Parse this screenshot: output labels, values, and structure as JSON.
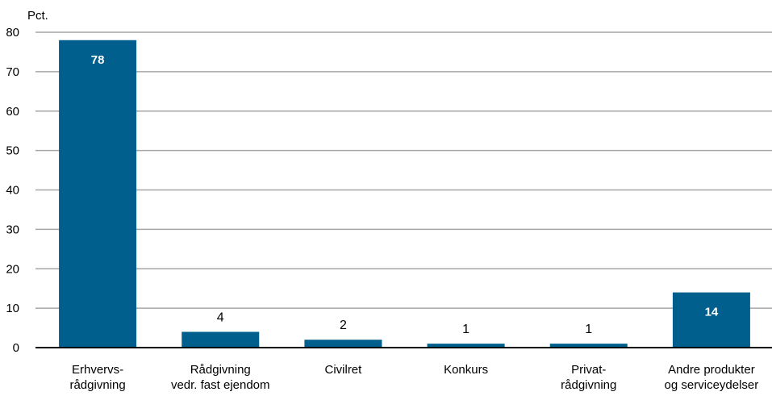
{
  "chart_data": {
    "type": "bar",
    "ylabel": "Pct.",
    "ylim": [
      0,
      80
    ],
    "yticks": [
      0,
      10,
      20,
      30,
      40,
      50,
      60,
      70,
      80
    ],
    "grid": true,
    "bar_color": "#005f8c",
    "categories": [
      [
        "Erhvervs-",
        "rådgivning"
      ],
      [
        "Rådgivning",
        "vedr. fast ejendom"
      ],
      [
        "Civilret"
      ],
      [
        "Konkurs"
      ],
      [
        "Privat-",
        "rådgivning"
      ],
      [
        "Andre produkter",
        "og serviceydelser"
      ]
    ],
    "values": [
      78,
      4,
      2,
      1,
      1,
      14
    ],
    "value_labels": [
      "78",
      "4",
      "2",
      "1",
      "1",
      "14"
    ],
    "label_inside": [
      true,
      false,
      false,
      false,
      false,
      true
    ]
  }
}
